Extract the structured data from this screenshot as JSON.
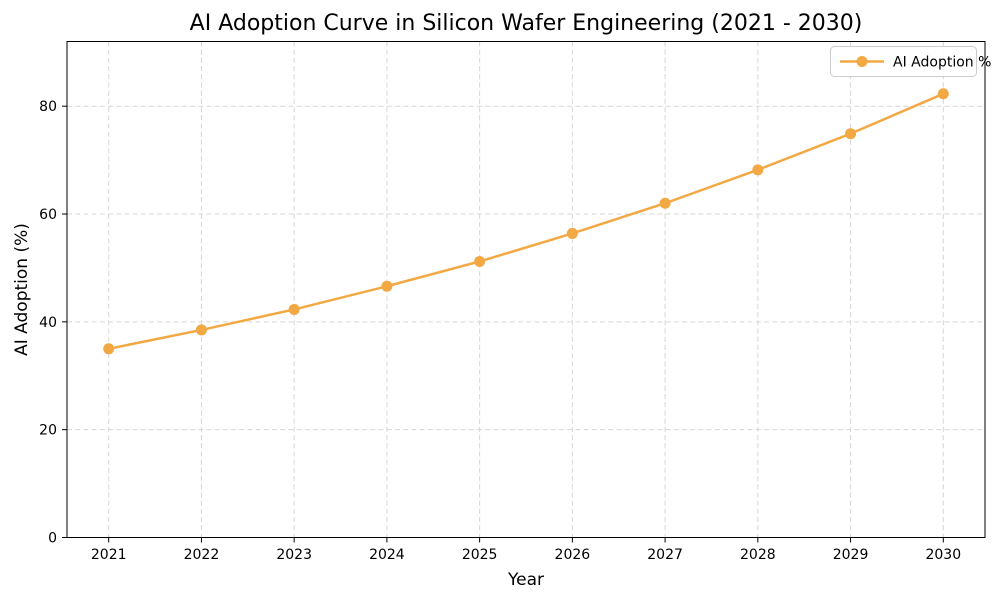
{
  "figure": {
    "background": "#ffffff"
  },
  "chart_data": {
    "type": "line",
    "title": "AI Adoption Curve in Silicon Wafer Engineering (2021 - 2030)",
    "xlabel": "Year",
    "ylabel": "AI Adoption (%)",
    "categories": [
      "2021",
      "2022",
      "2023",
      "2024",
      "2025",
      "2026",
      "2027",
      "2028",
      "2029",
      "2030"
    ],
    "series": [
      {
        "name": "AI Adoption %",
        "values": [
          35.0,
          38.5,
          42.3,
          46.6,
          51.2,
          56.4,
          62.0,
          68.2,
          74.9,
          82.3
        ],
        "color": "#f2a843",
        "marker": "circle",
        "linewidth": 2.5,
        "markersize": 5.5
      }
    ],
    "ylim": [
      0,
      92
    ],
    "yticks": [
      0,
      20,
      40,
      60,
      80
    ],
    "grid": true,
    "grid_style": "dashed",
    "grid_color": "#d6d6d6",
    "legend_position": "upper right",
    "legend_labels": [
      "AI Adoption %"
    ]
  },
  "colors": {
    "line": "#f2a843",
    "grid": "#d6d6d6",
    "spine": "#000000",
    "text": "#000000",
    "legend_border": "#cccccc",
    "legend_fill": "#ffffff"
  }
}
